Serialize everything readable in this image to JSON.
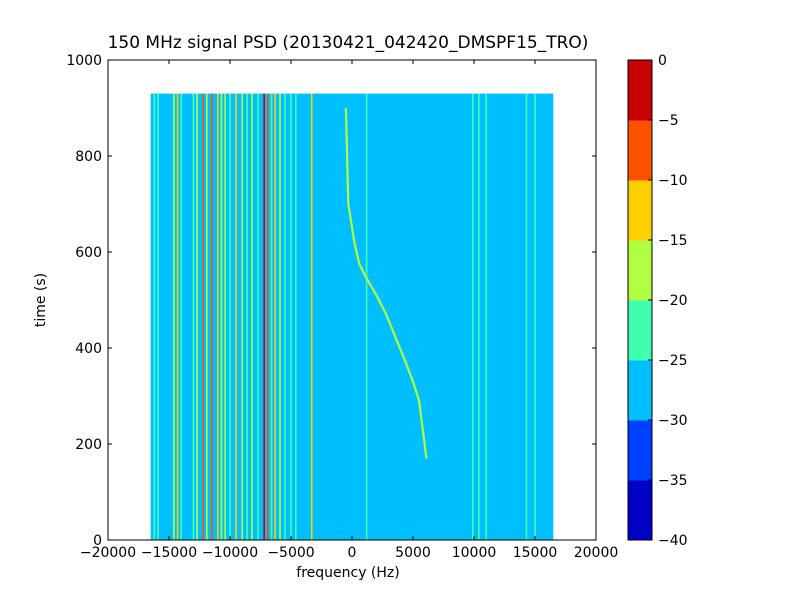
{
  "chart_data": {
    "type": "heatmap",
    "title": "150 MHz signal PSD (20130421_042420_DMSPF15_TRO)",
    "xlabel": "frequency (Hz)",
    "ylabel": "time (s)",
    "xlim": [
      -20000,
      20000
    ],
    "ylim": [
      0,
      1000
    ],
    "x_ticks": [
      -20000,
      -15000,
      -10000,
      -5000,
      0,
      5000,
      10000,
      15000,
      20000
    ],
    "x_tick_labels": [
      "−20000",
      "−15000",
      "−10000",
      "−5000",
      "0",
      "5000",
      "10000",
      "15000",
      "20000"
    ],
    "y_ticks": [
      0,
      200,
      400,
      600,
      800,
      1000
    ],
    "y_tick_labels": [
      "0",
      "200",
      "400",
      "600",
      "800",
      "1000"
    ],
    "data_extent": {
      "x": [
        -16500,
        16500
      ],
      "y": [
        0,
        930
      ]
    },
    "background_level": -27.5,
    "grid": false,
    "colorbar": {
      "levels": [
        -40,
        -35,
        -30,
        -25,
        -20,
        -15,
        -10,
        -5,
        0
      ],
      "tick_labels": [
        "−40",
        "−35",
        "−30",
        "−25",
        "−20",
        "−15",
        "−10",
        "−5",
        "0"
      ],
      "colors": [
        "#0000c8",
        "#0040ff",
        "#00bfff",
        "#40ffb0",
        "#b0ff40",
        "#ffd000",
        "#ff5000",
        "#c80000"
      ]
    },
    "vertical_lines": [
      {
        "f": -16200,
        "level": -22.5
      },
      {
        "f": -15900,
        "level": -22.5
      },
      {
        "f": -14600,
        "level": -17.5
      },
      {
        "f": -14300,
        "level": -12.5
      },
      {
        "f": -14000,
        "level": -22.5
      },
      {
        "f": -13000,
        "level": -22.5
      },
      {
        "f": -12700,
        "level": -17.5
      },
      {
        "f": -12200,
        "level": -7.5
      },
      {
        "f": -11900,
        "level": -17.5
      },
      {
        "f": -11500,
        "level": -7.5
      },
      {
        "f": -11000,
        "level": -12.5
      },
      {
        "f": -10700,
        "level": -17.5
      },
      {
        "f": -10400,
        "level": -17.5
      },
      {
        "f": -10000,
        "level": -22.5
      },
      {
        "f": -9500,
        "level": -12.5
      },
      {
        "f": -9000,
        "level": -17.5
      },
      {
        "f": -8600,
        "level": -22.5
      },
      {
        "f": -8200,
        "level": -17.5
      },
      {
        "f": -7700,
        "level": -22.5
      },
      {
        "f": -7200,
        "level": -2.5
      },
      {
        "f": -6900,
        "level": -7.5
      },
      {
        "f": -6600,
        "level": -22.5
      },
      {
        "f": -6300,
        "level": -12.5
      },
      {
        "f": -5900,
        "level": -17.5
      },
      {
        "f": -5500,
        "level": -22.5
      },
      {
        "f": -5000,
        "level": -22.5
      },
      {
        "f": -4600,
        "level": -22.5
      },
      {
        "f": -3300,
        "level": -12.5
      },
      {
        "f": 1200,
        "level": -22.5
      },
      {
        "f": 9900,
        "level": -22.5
      },
      {
        "f": 10400,
        "level": -22.5
      },
      {
        "f": 11000,
        "level": -22.5
      },
      {
        "f": 14300,
        "level": -22.5
      },
      {
        "f": 15000,
        "level": -22.5
      }
    ],
    "sweep_curve": {
      "level": -17.5,
      "points": [
        [
          -500,
          900
        ],
        [
          -400,
          800
        ],
        [
          -300,
          700
        ],
        [
          200,
          620
        ],
        [
          600,
          575
        ],
        [
          1200,
          545
        ],
        [
          2000,
          510
        ],
        [
          2800,
          470
        ],
        [
          3600,
          420
        ],
        [
          4400,
          370
        ],
        [
          5000,
          330
        ],
        [
          5500,
          290
        ],
        [
          5700,
          250
        ],
        [
          5900,
          210
        ],
        [
          6100,
          170
        ]
      ]
    }
  }
}
